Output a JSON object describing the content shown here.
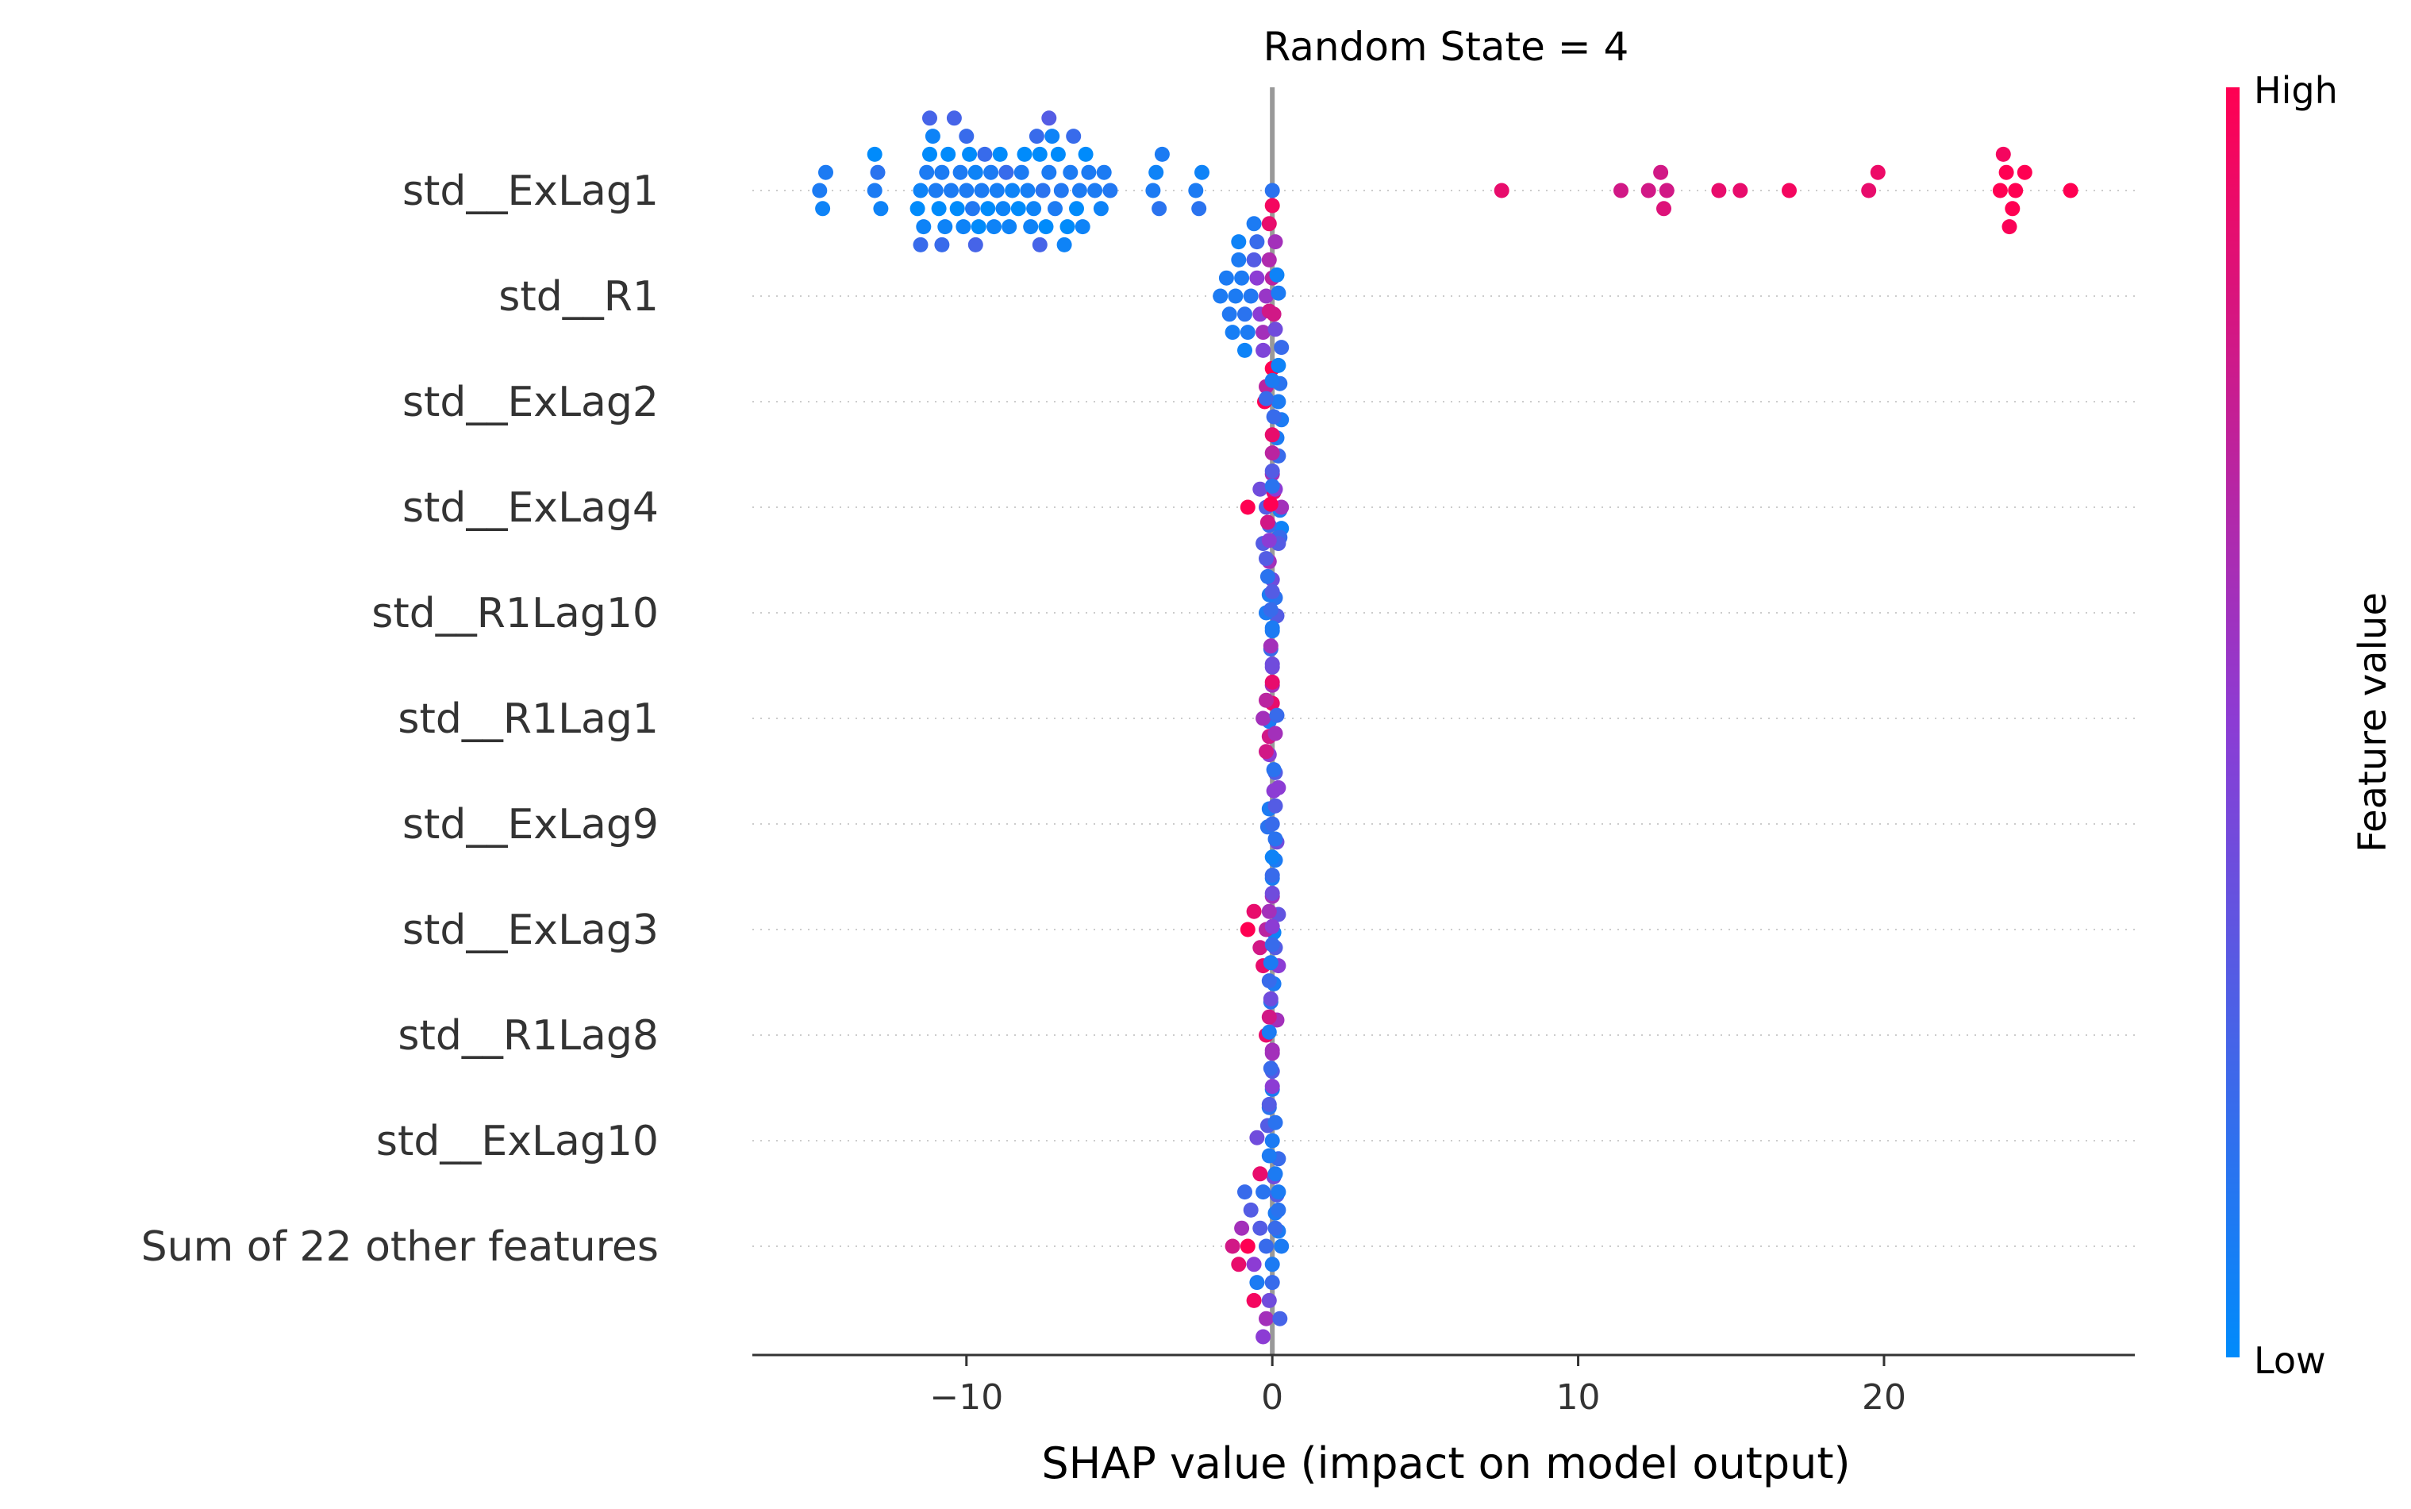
{
  "chart_data": {
    "type": "scatter",
    "title": "Random State = 4",
    "xlabel": "SHAP value (impact on model output)",
    "xlim": [
      -17,
      28.2
    ],
    "xticks": [
      {
        "value": -10,
        "label": "−10"
      },
      {
        "value": 0,
        "label": "0"
      },
      {
        "value": 10,
        "label": "10"
      },
      {
        "value": 20,
        "label": "20"
      }
    ],
    "grid": "horizontal dotted per feature",
    "colorbar": {
      "label": "Feature value",
      "high_label": "High",
      "low_label": "Low",
      "low_color": "#008bfb",
      "mid_color": "#8c3cd4",
      "high_color": "#ff0052"
    },
    "features": [
      {
        "name": "std__ExLag1",
        "points": [
          [
            -14.8,
            0.1
          ],
          [
            -14.6,
            0.1
          ],
          [
            -14.7,
            0.05
          ],
          [
            -13.0,
            0.1
          ],
          [
            -12.9,
            0.15
          ],
          [
            -12.8,
            0.05
          ],
          [
            -13.0,
            0.0
          ],
          [
            -11.5,
            0.05
          ],
          [
            -11.3,
            0.1
          ],
          [
            -11.0,
            0.1
          ],
          [
            -10.8,
            0.1
          ],
          [
            -10.5,
            0.1
          ],
          [
            -10.2,
            0.1
          ],
          [
            -10.0,
            0.1
          ],
          [
            -9.8,
            0.12
          ],
          [
            -9.5,
            0.1
          ],
          [
            -9.2,
            0.1
          ],
          [
            -9.0,
            0.08
          ],
          [
            -8.8,
            0.05
          ],
          [
            -8.5,
            0.05
          ],
          [
            -8.2,
            0.1
          ],
          [
            -8.0,
            0.08
          ],
          [
            -7.8,
            0.05
          ],
          [
            -7.5,
            0.15
          ],
          [
            -7.3,
            0.1
          ],
          [
            -7.1,
            0.1
          ],
          [
            -6.9,
            0.12
          ],
          [
            -6.6,
            0.1
          ],
          [
            -6.3,
            0.1
          ],
          [
            -6.0,
            0.1
          ],
          [
            -5.8,
            0.1
          ],
          [
            -5.5,
            0.1
          ],
          [
            -5.3,
            0.12
          ],
          [
            -11.6,
            0.0
          ],
          [
            -11.2,
            0.0
          ],
          [
            -10.9,
            0.0
          ],
          [
            -10.6,
            0.0
          ],
          [
            -10.3,
            0.0
          ],
          [
            -9.9,
            0.0
          ],
          [
            -9.6,
            0.0
          ],
          [
            -9.3,
            0.0
          ],
          [
            -8.9,
            0.0
          ],
          [
            -8.3,
            0.0
          ],
          [
            -8.1,
            0.0
          ],
          [
            -7.6,
            0.0
          ],
          [
            -7.4,
            0.0
          ],
          [
            -7.0,
            0.0
          ],
          [
            -6.7,
            0.0
          ],
          [
            -6.4,
            0.0
          ],
          [
            -6.1,
            0.0
          ],
          [
            -5.6,
            0.05
          ],
          [
            -11.4,
            0.05
          ],
          [
            -11.1,
            0.05
          ],
          [
            -10.7,
            0.05
          ],
          [
            -10.1,
            0.05
          ],
          [
            -9.7,
            0.05
          ],
          [
            -9.1,
            0.05
          ],
          [
            -8.6,
            0.05
          ],
          [
            -7.9,
            0.05
          ],
          [
            -7.2,
            0.05
          ],
          [
            -6.8,
            0.05
          ],
          [
            -6.2,
            0.05
          ],
          [
            -11.5,
            0.2
          ],
          [
            -10.8,
            0.2
          ],
          [
            -10.0,
            0.2
          ],
          [
            -9.4,
            0.2
          ],
          [
            -8.7,
            0.2
          ],
          [
            -7.7,
            0.2
          ],
          [
            -6.5,
            0.2
          ],
          [
            -11.2,
            0.25
          ],
          [
            -10.4,
            0.25
          ],
          [
            -9.7,
            0.25
          ],
          [
            -7.6,
            0.25
          ],
          [
            -7.3,
            0.3
          ],
          [
            -3.9,
            0.1
          ],
          [
            -3.8,
            0.05
          ],
          [
            -3.7,
            0.15
          ],
          [
            -3.6,
            0.1
          ],
          [
            -2.5,
            0.1
          ],
          [
            -2.3,
            0.05
          ],
          [
            -2.4,
            0.15
          ],
          [
            0.0,
            0.15
          ],
          [
            7.5,
            0.9
          ],
          [
            11.4,
            0.8
          ],
          [
            12.3,
            0.8
          ],
          [
            12.7,
            0.8
          ],
          [
            12.9,
            0.8
          ],
          [
            12.8,
            0.85
          ],
          [
            14.6,
            0.9
          ],
          [
            15.3,
            0.9
          ],
          [
            16.9,
            0.95
          ],
          [
            19.5,
            0.9
          ],
          [
            19.8,
            0.92
          ],
          [
            23.8,
            1.0
          ],
          [
            24.0,
            1.0
          ],
          [
            24.2,
            1.0
          ],
          [
            23.9,
            0.95
          ],
          [
            24.1,
            0.98
          ],
          [
            24.3,
            1.0
          ],
          [
            24.6,
            1.0
          ],
          [
            26.1,
            1.0
          ]
        ]
      },
      {
        "name": "std__R1",
        "points": [
          [
            -1.7,
            0.1
          ],
          [
            -1.5,
            0.1
          ],
          [
            -1.4,
            0.12
          ],
          [
            -1.2,
            0.1
          ],
          [
            -1.1,
            0.1
          ],
          [
            -1.0,
            0.1
          ],
          [
            -0.9,
            0.15
          ],
          [
            -0.8,
            0.1
          ],
          [
            -0.7,
            0.12
          ],
          [
            -0.6,
            0.3
          ],
          [
            -0.5,
            0.5
          ],
          [
            -0.4,
            0.5
          ],
          [
            -0.3,
            0.6
          ],
          [
            -0.2,
            0.55
          ],
          [
            -0.1,
            0.65
          ],
          [
            0.0,
            0.7
          ],
          [
            0.05,
            0.8
          ],
          [
            0.1,
            0.6
          ],
          [
            -1.3,
            0.08
          ],
          [
            -1.1,
            0.05
          ],
          [
            -0.9,
            0.05
          ],
          [
            -0.5,
            0.2
          ],
          [
            -0.3,
            0.45
          ],
          [
            -0.1,
            0.9
          ],
          [
            0.0,
            1.0
          ],
          [
            0.0,
            0.95
          ],
          [
            -0.2,
            0.7
          ],
          [
            -0.6,
            0.1
          ]
        ]
      },
      {
        "name": "std__ExLag2",
        "points": [
          [
            0.2,
            0.1
          ],
          [
            0.25,
            0.15
          ],
          [
            0.3,
            0.1
          ],
          [
            0.2,
            0.05
          ],
          [
            0.15,
            0.1
          ],
          [
            0.3,
            0.2
          ],
          [
            0.2,
            0.2
          ],
          [
            0.1,
            0.4
          ],
          [
            0.0,
            0.6
          ],
          [
            -0.1,
            0.8
          ],
          [
            -0.25,
            1.0
          ],
          [
            0.05,
            0.9
          ],
          [
            0.2,
            0.1
          ],
          [
            0.25,
            0.1
          ],
          [
            0.15,
            0.05
          ],
          [
            0.3,
            0.05
          ],
          [
            0.2,
            0.15
          ],
          [
            0.25,
            0.2
          ]
        ]
      },
      {
        "name": "std__ExLag4",
        "points": [
          [
            -0.8,
            1.0
          ],
          [
            -0.4,
            0.4
          ],
          [
            -0.2,
            0.3
          ],
          [
            -0.1,
            0.2
          ],
          [
            0.0,
            0.3
          ],
          [
            0.1,
            0.5
          ],
          [
            0.2,
            0.3
          ],
          [
            0.3,
            0.6
          ],
          [
            0.0,
            0.7
          ],
          [
            -0.1,
            0.6
          ],
          [
            0.0,
            0.9
          ],
          [
            0.0,
            0.4
          ],
          [
            0.05,
            0.2
          ],
          [
            0.1,
            0.15
          ],
          [
            -0.2,
            0.2
          ],
          [
            0.15,
            0.3
          ],
          [
            0.0,
            0.1
          ],
          [
            -0.3,
            0.3
          ]
        ]
      },
      {
        "name": "std__R1Lag10",
        "points": [
          [
            -0.2,
            0.1
          ],
          [
            -0.1,
            0.1
          ],
          [
            0.0,
            0.1
          ],
          [
            -0.15,
            0.15
          ],
          [
            -0.05,
            0.2
          ],
          [
            -0.2,
            0.3
          ],
          [
            0.0,
            0.4
          ],
          [
            -0.1,
            0.5
          ],
          [
            0.0,
            0.6
          ],
          [
            -0.15,
            0.8
          ],
          [
            0.0,
            0.9
          ],
          [
            -0.05,
            1.0
          ],
          [
            -0.1,
            0.1
          ],
          [
            0.0,
            0.15
          ]
        ]
      },
      {
        "name": "std__R1Lag1",
        "points": [
          [
            -0.3,
            0.6
          ],
          [
            -0.2,
            0.7
          ],
          [
            -0.1,
            0.8
          ],
          [
            0.0,
            0.9
          ],
          [
            -0.1,
            0.5
          ],
          [
            0.0,
            0.4
          ],
          [
            0.1,
            0.3
          ],
          [
            -0.05,
            0.6
          ],
          [
            0.05,
            0.5
          ],
          [
            0.0,
            0.1
          ],
          [
            -0.1,
            0.1
          ],
          [
            -0.05,
            0.2
          ],
          [
            -0.15,
            0.15
          ],
          [
            0.0,
            0.3
          ]
        ]
      },
      {
        "name": "std__ExLag9",
        "points": [
          [
            0.0,
            0.2
          ],
          [
            0.1,
            0.3
          ],
          [
            0.15,
            0.4
          ],
          [
            0.2,
            0.5
          ],
          [
            0.1,
            0.1
          ],
          [
            0.05,
            0.15
          ],
          [
            0.0,
            0.1
          ],
          [
            -0.2,
            0.8
          ],
          [
            0.0,
            0.6
          ],
          [
            0.1,
            0.6
          ],
          [
            0.2,
            0.35
          ],
          [
            0.15,
            0.2
          ],
          [
            0.05,
            0.05
          ]
        ]
      },
      {
        "name": "std__ExLag3",
        "points": [
          [
            -0.8,
            1.0
          ],
          [
            -0.6,
            0.9
          ],
          [
            -0.4,
            0.8
          ],
          [
            -0.2,
            0.7
          ],
          [
            -0.1,
            0.6
          ],
          [
            0.0,
            0.4
          ],
          [
            0.1,
            0.3
          ],
          [
            0.2,
            0.5
          ],
          [
            0.0,
            0.2
          ],
          [
            0.05,
            0.1
          ],
          [
            0.0,
            0.05
          ],
          [
            -0.05,
            0.15
          ],
          [
            0.1,
            0.15
          ],
          [
            0.15,
            0.6
          ],
          [
            -0.3,
            0.9
          ]
        ]
      },
      {
        "name": "std__R1Lag8",
        "points": [
          [
            -0.2,
            0.9
          ],
          [
            -0.1,
            0.8
          ],
          [
            0.0,
            0.6
          ],
          [
            -0.05,
            0.4
          ],
          [
            0.0,
            0.3
          ],
          [
            -0.1,
            0.2
          ],
          [
            0.0,
            0.1
          ],
          [
            -0.05,
            0.1
          ],
          [
            -0.1,
            0.15
          ],
          [
            0.0,
            0.2
          ],
          [
            -0.15,
            0.3
          ],
          [
            0.0,
            0.5
          ]
        ]
      },
      {
        "name": "std__ExLag10",
        "points": [
          [
            0.0,
            0.1
          ],
          [
            0.1,
            0.15
          ],
          [
            0.2,
            0.2
          ],
          [
            -0.1,
            0.3
          ],
          [
            0.05,
            0.4
          ],
          [
            0.0,
            0.5
          ],
          [
            0.15,
            0.3
          ],
          [
            -0.05,
            0.2
          ],
          [
            0.1,
            0.1
          ],
          [
            0.0,
            0.6
          ],
          [
            0.2,
            0.1
          ],
          [
            -0.1,
            0.1
          ]
        ]
      },
      {
        "name": "Sum of 22 other features",
        "points": [
          [
            -1.3,
            0.8
          ],
          [
            -1.0,
            0.6
          ],
          [
            -0.8,
            1.0
          ],
          [
            -0.6,
            0.5
          ],
          [
            -0.4,
            0.3
          ],
          [
            -0.2,
            0.2
          ],
          [
            0.0,
            0.1
          ],
          [
            0.1,
            0.2
          ],
          [
            0.2,
            0.15
          ],
          [
            0.3,
            0.1
          ],
          [
            -0.7,
            0.3
          ],
          [
            -0.5,
            0.1
          ],
          [
            -0.3,
            0.15
          ],
          [
            -0.1,
            0.4
          ],
          [
            0.0,
            0.2
          ],
          [
            0.2,
            0.1
          ],
          [
            -0.4,
            0.9
          ],
          [
            -0.6,
            0.95
          ],
          [
            -0.2,
            0.6
          ],
          [
            -1.1,
            0.9
          ],
          [
            0.1,
            0.1
          ],
          [
            -0.9,
            0.2
          ],
          [
            -0.1,
            0.1
          ],
          [
            0.25,
            0.25
          ],
          [
            -0.3,
            0.5
          ],
          [
            -0.5,
            0.4
          ]
        ]
      }
    ]
  }
}
